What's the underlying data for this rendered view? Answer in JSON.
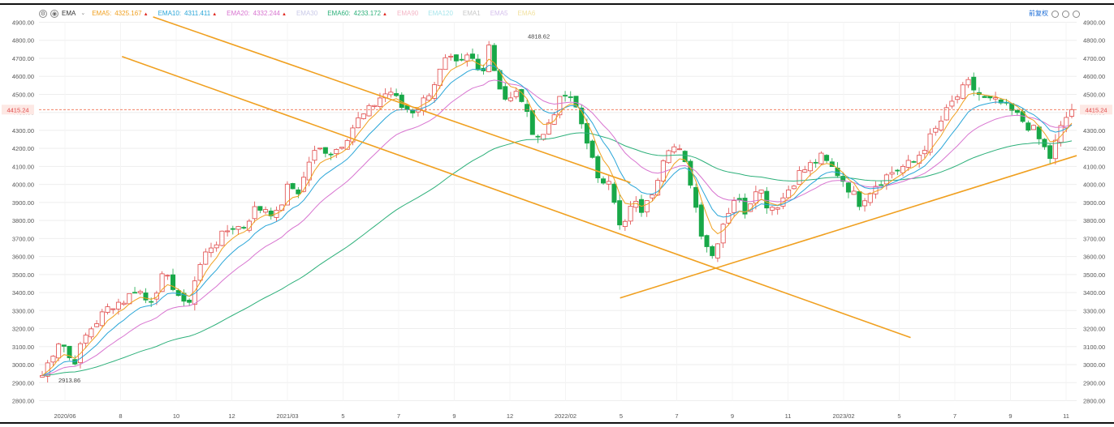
{
  "legend": {
    "indicator": "EMA",
    "items": [
      {
        "label": "EMA5:",
        "value": "4325.167",
        "color": "#f0a020",
        "arrow": "▲"
      },
      {
        "label": "EMA10:",
        "value": "4311.411",
        "color": "#2aa6d8",
        "arrow": "▲"
      },
      {
        "label": "EMA20:",
        "value": "4332.244",
        "color": "#d874d0",
        "arrow": "▲"
      },
      {
        "label": "EMA30",
        "value": "",
        "color": "#c9c9e8",
        "arrow": ""
      },
      {
        "label": "EMA60:",
        "value": "4233.172",
        "color": "#2db07a",
        "arrow": "▲"
      },
      {
        "label": "EMA90",
        "value": "",
        "color": "#f4b6c6",
        "arrow": ""
      },
      {
        "label": "EMA120",
        "value": "",
        "color": "#a8e6ec",
        "arrow": ""
      },
      {
        "label": "EMA1",
        "value": "",
        "color": "#c8c8c8",
        "arrow": ""
      },
      {
        "label": "EMA5",
        "value": "",
        "color": "#d5c0ec",
        "arrow": ""
      },
      {
        "label": "EMA6",
        "value": "",
        "color": "#f2e2a0",
        "arrow": ""
      }
    ]
  },
  "controls": {
    "rights_label": "前复权"
  },
  "chart_data": {
    "type": "candlestick",
    "y_ticks": [
      "4900.00",
      "4800.00",
      "4700.00",
      "4600.00",
      "4500.00",
      "4400.00",
      "4300.00",
      "4200.00",
      "4100.00",
      "4000.00",
      "3900.00",
      "3800.00",
      "3700.00",
      "3600.00",
      "3500.00",
      "3400.00",
      "3300.00",
      "3200.00",
      "3100.00",
      "3000.00",
      "2900.00",
      "2800.00"
    ],
    "ylim": [
      2800,
      4900
    ],
    "x_ticks": [
      "2020/06",
      "8",
      "10",
      "12",
      "2021/03",
      "5",
      "7",
      "9",
      "12",
      "2022/02",
      "5",
      "7",
      "9",
      "11",
      "2023/02",
      "5",
      "7",
      "9",
      "11"
    ],
    "current_price": {
      "value": 4415.24,
      "label": "4415.24",
      "color": "#f07050"
    },
    "annotations": [
      {
        "label": "4818.62",
        "value": 4818.62
      },
      {
        "label": "2913.86",
        "value": 2913.86
      }
    ],
    "colors": {
      "up": "#e04848",
      "down": "#18a848",
      "trend_line": "#f0a020",
      "grid": "#eeeeee"
    },
    "trend_lines": [
      {
        "name": "",
        "points": [
          [
            0.08,
            4710
          ],
          [
            0.84,
            3150
          ]
        ]
      },
      {
        "name": "",
        "points": [
          [
            0.11,
            4930
          ],
          [
            0.57,
            4010
          ]
        ]
      },
      {
        "name": "",
        "points": [
          [
            0.56,
            3370
          ],
          [
            1.0,
            4160
          ]
        ]
      }
    ],
    "price_path": [
      [
        0,
        2940
      ],
      [
        0.012,
        3050
      ],
      [
        0.024,
        3150
      ],
      [
        0.04,
        3000
      ],
      [
        0.06,
        3180
      ],
      [
        0.09,
        3330
      ],
      [
        0.11,
        3360
      ],
      [
        0.125,
        3430
      ],
      [
        0.14,
        3340
      ],
      [
        0.16,
        3490
      ],
      [
        0.175,
        3430
      ],
      [
        0.19,
        3300
      ],
      [
        0.205,
        3520
      ],
      [
        0.22,
        3650
      ],
      [
        0.235,
        3700
      ],
      [
        0.25,
        3770
      ],
      [
        0.265,
        3760
      ],
      [
        0.28,
        3860
      ],
      [
        0.295,
        3870
      ],
      [
        0.31,
        3830
      ],
      [
        0.325,
        3990
      ],
      [
        0.34,
        3960
      ],
      [
        0.355,
        4160
      ],
      [
        0.37,
        4200
      ],
      [
        0.385,
        4180
      ],
      [
        0.4,
        4250
      ],
      [
        0.415,
        4350
      ],
      [
        0.43,
        4400
      ],
      [
        0.445,
        4480
      ],
      [
        0.46,
        4520
      ],
      [
        0.475,
        4430
      ],
      [
        0.49,
        4410
      ],
      [
        0.505,
        4470
      ],
      [
        0.52,
        4580
      ],
      [
        0.535,
        4700
      ],
      [
        0.55,
        4650
      ],
      [
        0.565,
        4720
      ],
      [
        0.58,
        4600
      ],
      [
        0.59,
        4790
      ],
      [
        0.6,
        4590
      ],
      [
        0.615,
        4450
      ],
      [
        0.63,
        4520
      ],
      [
        0.645,
        4320
      ],
      [
        0.66,
        4250
      ],
      [
        0.675,
        4400
      ],
      [
        0.69,
        4500
      ],
      [
        0.705,
        4430
      ],
      [
        0.72,
        4250
      ],
      [
        0.735,
        4000
      ],
      [
        0.75,
        4050
      ],
      [
        0.765,
        3720
      ],
      [
        0.78,
        3900
      ],
      [
        0.795,
        3850
      ],
      [
        0.81,
        4000
      ],
      [
        0.825,
        4220
      ],
      [
        0.84,
        4200
      ],
      [
        0.855,
        4050
      ],
      [
        0.87,
        3750
      ],
      [
        0.885,
        3600
      ],
      [
        0.9,
        3790
      ],
      [
        0.915,
        3930
      ],
      [
        0.93,
        3850
      ],
      [
        0.945,
        4010
      ],
      [
        0.96,
        3870
      ],
      [
        0.975,
        3900
      ],
      [
        0.99,
        4000
      ],
      [
        1.0,
        4060
      ]
    ],
    "price_path_2": [
      [
        0,
        4060
      ],
      [
        0.08,
        4150
      ],
      [
        0.15,
        4050
      ],
      [
        0.22,
        3900
      ],
      [
        0.28,
        4000
      ],
      [
        0.35,
        4080
      ],
      [
        0.42,
        4120
      ],
      [
        0.5,
        4300
      ],
      [
        0.56,
        4450
      ],
      [
        0.62,
        4560
      ],
      [
        0.68,
        4470
      ],
      [
        0.74,
        4450
      ],
      [
        0.8,
        4380
      ],
      [
        0.86,
        4300
      ],
      [
        0.92,
        4150
      ],
      [
        0.97,
        4350
      ],
      [
        1.0,
        4415
      ]
    ]
  }
}
